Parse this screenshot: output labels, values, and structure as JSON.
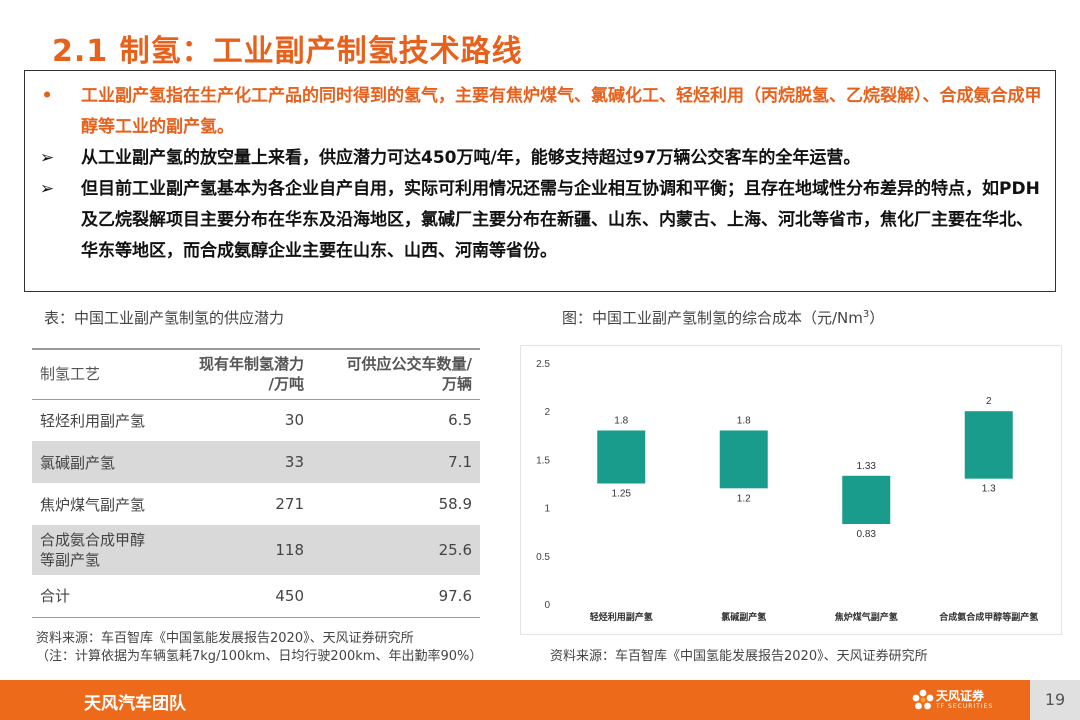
{
  "title": "2.1 制氢：工业副产制氢技术路线",
  "bullets": [
    {
      "mark": "•",
      "style": "orange",
      "text": "工业副产氢指在生产化工产品的同时得到的氢气，主要有焦炉煤气、氯碱化工、轻烃利用（丙烷脱氢、乙烷裂解）、合成氨合成甲醇等工业的副产氢。"
    },
    {
      "mark": "➢",
      "style": "black",
      "text": "从工业副产氢的放空量上来看，供应潜力可达450万吨/年，能够支持超过97万辆公交客车的全年运营。"
    },
    {
      "mark": "➢",
      "style": "black",
      "text": "但目前工业副产氢基本为各企业自产自用，实际可利用情况还需与企业相互协调和平衡；且存在地域性分布差异的特点，如PDH及乙烷裂解项目主要分布在华东及沿海地区，氯碱厂主要分布在新疆、山东、内蒙古、上海、河北等省市，焦化厂主要在华北、华东等地区，而合成氨醇企业主要在山东、山西、河南等省份。"
    }
  ],
  "table": {
    "caption": "表：中国工业副产氢制氢的供应潜力",
    "headers": [
      "制氢工艺",
      "现有年制氢潜力/万吨",
      "可供应公交车数量/万辆"
    ],
    "header_lines": [
      [
        "制氢工艺"
      ],
      [
        "现有年制氢潜力",
        "/万吨"
      ],
      [
        "可供应公交车数量/",
        "万辆"
      ]
    ],
    "rows": [
      [
        "轻烃利用副产氢",
        "30",
        "6.5"
      ],
      [
        "氯碱副产氢",
        "33",
        "7.1"
      ],
      [
        "焦炉煤气副产氢",
        "271",
        "58.9"
      ],
      [
        "合成氨合成甲醇等副产氢",
        "118",
        "25.6"
      ],
      [
        "合计",
        "450",
        "97.6"
      ]
    ],
    "row4_lines": [
      "合成氨合成甲醇",
      "等副产氢"
    ],
    "source": "资料来源：车百智库《中国氢能发展报告2020》、天风证券研究所",
    "note": "（注：计算依据为车辆氢耗7kg/100km、日均行驶200km、年出勤率90%）"
  },
  "chart": {
    "caption_prefix": "图：中国工业副产氢制氢的综合成本（元/Nm",
    "caption_sup": "3",
    "caption_suffix": "）",
    "source": "资料来源：车百智库《中国氢能发展报告2020》、天风证券研究所"
  },
  "chart_data": {
    "type": "bar",
    "subtype": "floating-range",
    "categories": [
      "轻烃利用副产氢",
      "氯碱副产氢",
      "焦炉煤气副产氢",
      "合成氨合成甲醇等副产氢"
    ],
    "low": [
      1.25,
      1.2,
      0.83,
      1.3
    ],
    "high": [
      1.8,
      1.8,
      1.33,
      2
    ],
    "low_labels": [
      "1.25",
      "1.2",
      "0.83",
      "1.3"
    ],
    "high_labels": [
      "1.8",
      "1.8",
      "1.33",
      "2"
    ],
    "ylim": [
      0,
      2.5
    ],
    "yticks": [
      "0",
      "0.5",
      "1",
      "1.5",
      "2",
      "2.5"
    ],
    "grid": false,
    "bar_color": "#1A9C8C"
  },
  "footer": {
    "team": "天风汽车团队",
    "logo_text": "天风证券",
    "logo_sub": "TF SECURITIES",
    "page": "19",
    "bar_color": "#EE6A1B"
  }
}
